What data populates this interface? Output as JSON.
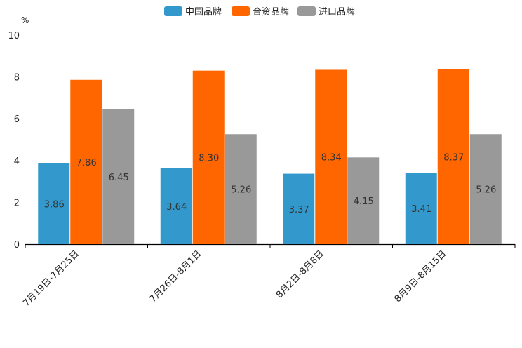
{
  "chart_data": {
    "type": "bar",
    "title": "",
    "xlabel": "",
    "ylabel": "%",
    "ylim": [
      0,
      10
    ],
    "yticks": [
      0,
      2,
      4,
      6,
      8,
      10
    ],
    "grid": false,
    "legend_position": "top-center",
    "categories": [
      "7月19日-7月25日",
      "7月26日-8月1日",
      "8月2日-8月8日",
      "8月9日-8月15日"
    ],
    "series": [
      {
        "name": "中国品牌",
        "color": "#3399cc",
        "values": [
          3.86,
          3.64,
          3.37,
          3.41
        ]
      },
      {
        "name": "合资品牌",
        "color": "#ff6600",
        "values": [
          7.86,
          8.3,
          8.34,
          8.37
        ]
      },
      {
        "name": "进口品牌",
        "color": "#999999",
        "values": [
          6.45,
          5.26,
          4.15,
          5.26
        ]
      }
    ]
  }
}
